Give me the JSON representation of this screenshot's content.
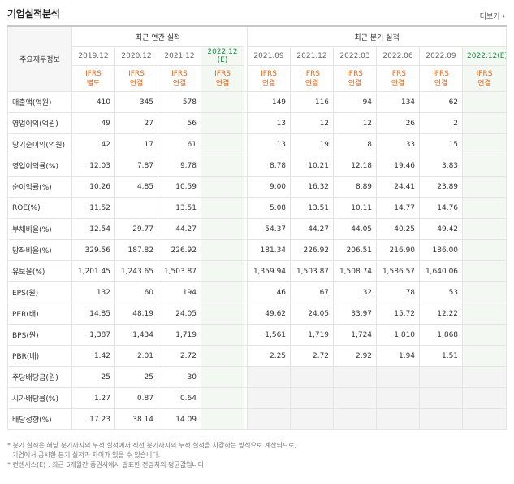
{
  "section_title": "기업실적분석",
  "more_label": "더보기 ›",
  "corner_label": "주요재무정보",
  "groups": {
    "annual": "최근 연간 실적",
    "quarterly": "최근 분기 실적"
  },
  "annual_periods": [
    "2019.12",
    "2020.12",
    "2021.12",
    "2022.12"
  ],
  "annual_est_mark": "(E)",
  "quarterly_periods": [
    "2021.09",
    "2021.12",
    "2022.03",
    "2022.06",
    "2022.09",
    "2022.12"
  ],
  "quarterly_est_mark": "(E)",
  "annual_std": [
    [
      "IFRS",
      "별도"
    ],
    [
      "IFRS",
      "연결"
    ],
    [
      "IFRS",
      "연결"
    ],
    [
      "IFRS",
      "연결"
    ]
  ],
  "quarterly_std": [
    [
      "IFRS",
      "연결"
    ],
    [
      "IFRS",
      "연결"
    ],
    [
      "IFRS",
      "연결"
    ],
    [
      "IFRS",
      "연결"
    ],
    [
      "IFRS",
      "연결"
    ],
    [
      "IFRS",
      "연결"
    ]
  ],
  "rows": [
    {
      "label": "매출액(억원)",
      "annual": [
        "410",
        "345",
        "578",
        ""
      ],
      "quarterly": [
        "149",
        "116",
        "94",
        "134",
        "62",
        ""
      ]
    },
    {
      "label": "영업이익(억원)",
      "annual": [
        "49",
        "27",
        "56",
        ""
      ],
      "quarterly": [
        "13",
        "12",
        "12",
        "26",
        "2",
        ""
      ]
    },
    {
      "label": "당기순이익(억원)",
      "annual": [
        "42",
        "17",
        "61",
        ""
      ],
      "quarterly": [
        "13",
        "19",
        "8",
        "33",
        "15",
        ""
      ]
    },
    {
      "label": "영업이익률(%)",
      "annual": [
        "12.03",
        "7.87",
        "9.78",
        ""
      ],
      "quarterly": [
        "8.78",
        "10.21",
        "12.18",
        "19.46",
        "3.83",
        ""
      ]
    },
    {
      "label": "순이익률(%)",
      "annual": [
        "10.26",
        "4.85",
        "10.59",
        ""
      ],
      "quarterly": [
        "9.00",
        "16.32",
        "8.89",
        "24.41",
        "23.89",
        ""
      ]
    },
    {
      "label": "ROE(%)",
      "annual": [
        "11.52",
        "",
        "13.51",
        ""
      ],
      "quarterly": [
        "5.08",
        "13.51",
        "10.11",
        "14.77",
        "14.76",
        ""
      ]
    },
    {
      "label": "부채비율(%)",
      "annual": [
        "12.54",
        "29.77",
        "44.27",
        ""
      ],
      "quarterly": [
        "54.37",
        "44.27",
        "44.05",
        "40.25",
        "49.42",
        ""
      ]
    },
    {
      "label": "당좌비율(%)",
      "annual": [
        "329.56",
        "187.82",
        "226.92",
        ""
      ],
      "quarterly": [
        "181.34",
        "226.92",
        "206.51",
        "216.90",
        "186.00",
        ""
      ]
    },
    {
      "label": "유보율(%)",
      "annual": [
        "1,201.45",
        "1,243.65",
        "1,503.87",
        ""
      ],
      "quarterly": [
        "1,359.94",
        "1,503.87",
        "1,508.74",
        "1,586.57",
        "1,640.06",
        ""
      ]
    },
    {
      "label": "EPS(원)",
      "annual": [
        "132",
        "60",
        "194",
        ""
      ],
      "quarterly": [
        "46",
        "67",
        "32",
        "78",
        "53",
        ""
      ]
    },
    {
      "label": "PER(배)",
      "annual": [
        "14.85",
        "48.19",
        "24.05",
        ""
      ],
      "quarterly": [
        "49.62",
        "24.05",
        "33.97",
        "15.72",
        "12.22",
        ""
      ]
    },
    {
      "label": "BPS(원)",
      "annual": [
        "1,387",
        "1,434",
        "1,719",
        ""
      ],
      "quarterly": [
        "1,561",
        "1,719",
        "1,724",
        "1,810",
        "1,868",
        ""
      ]
    },
    {
      "label": "PBR(배)",
      "annual": [
        "1.42",
        "2.01",
        "2.72",
        ""
      ],
      "quarterly": [
        "2.25",
        "2.72",
        "2.92",
        "1.94",
        "1.51",
        ""
      ]
    },
    {
      "label": "주당배당금(원)",
      "annual": [
        "25",
        "25",
        "30",
        ""
      ],
      "quarterly": null
    },
    {
      "label": "시가배당률(%)",
      "annual": [
        "1.27",
        "0.87",
        "0.64",
        ""
      ],
      "quarterly": null
    },
    {
      "label": "배당성향(%)",
      "annual": [
        "17.23",
        "38.14",
        "14.09",
        ""
      ],
      "quarterly": null
    }
  ],
  "notes": [
    "* 분기 실적은 해당 분기까지의 누적 실적에서 직전 분기까지의 누적 실적을 차감하는 방식으로 계산되므로,",
    "기업에서 공시한 분기 실적과 차이가 있을 수 있습니다.",
    "* 컨센서스(E) : 최근 6개월간 증권사에서 발표한 전망치의 평균값입니다."
  ]
}
